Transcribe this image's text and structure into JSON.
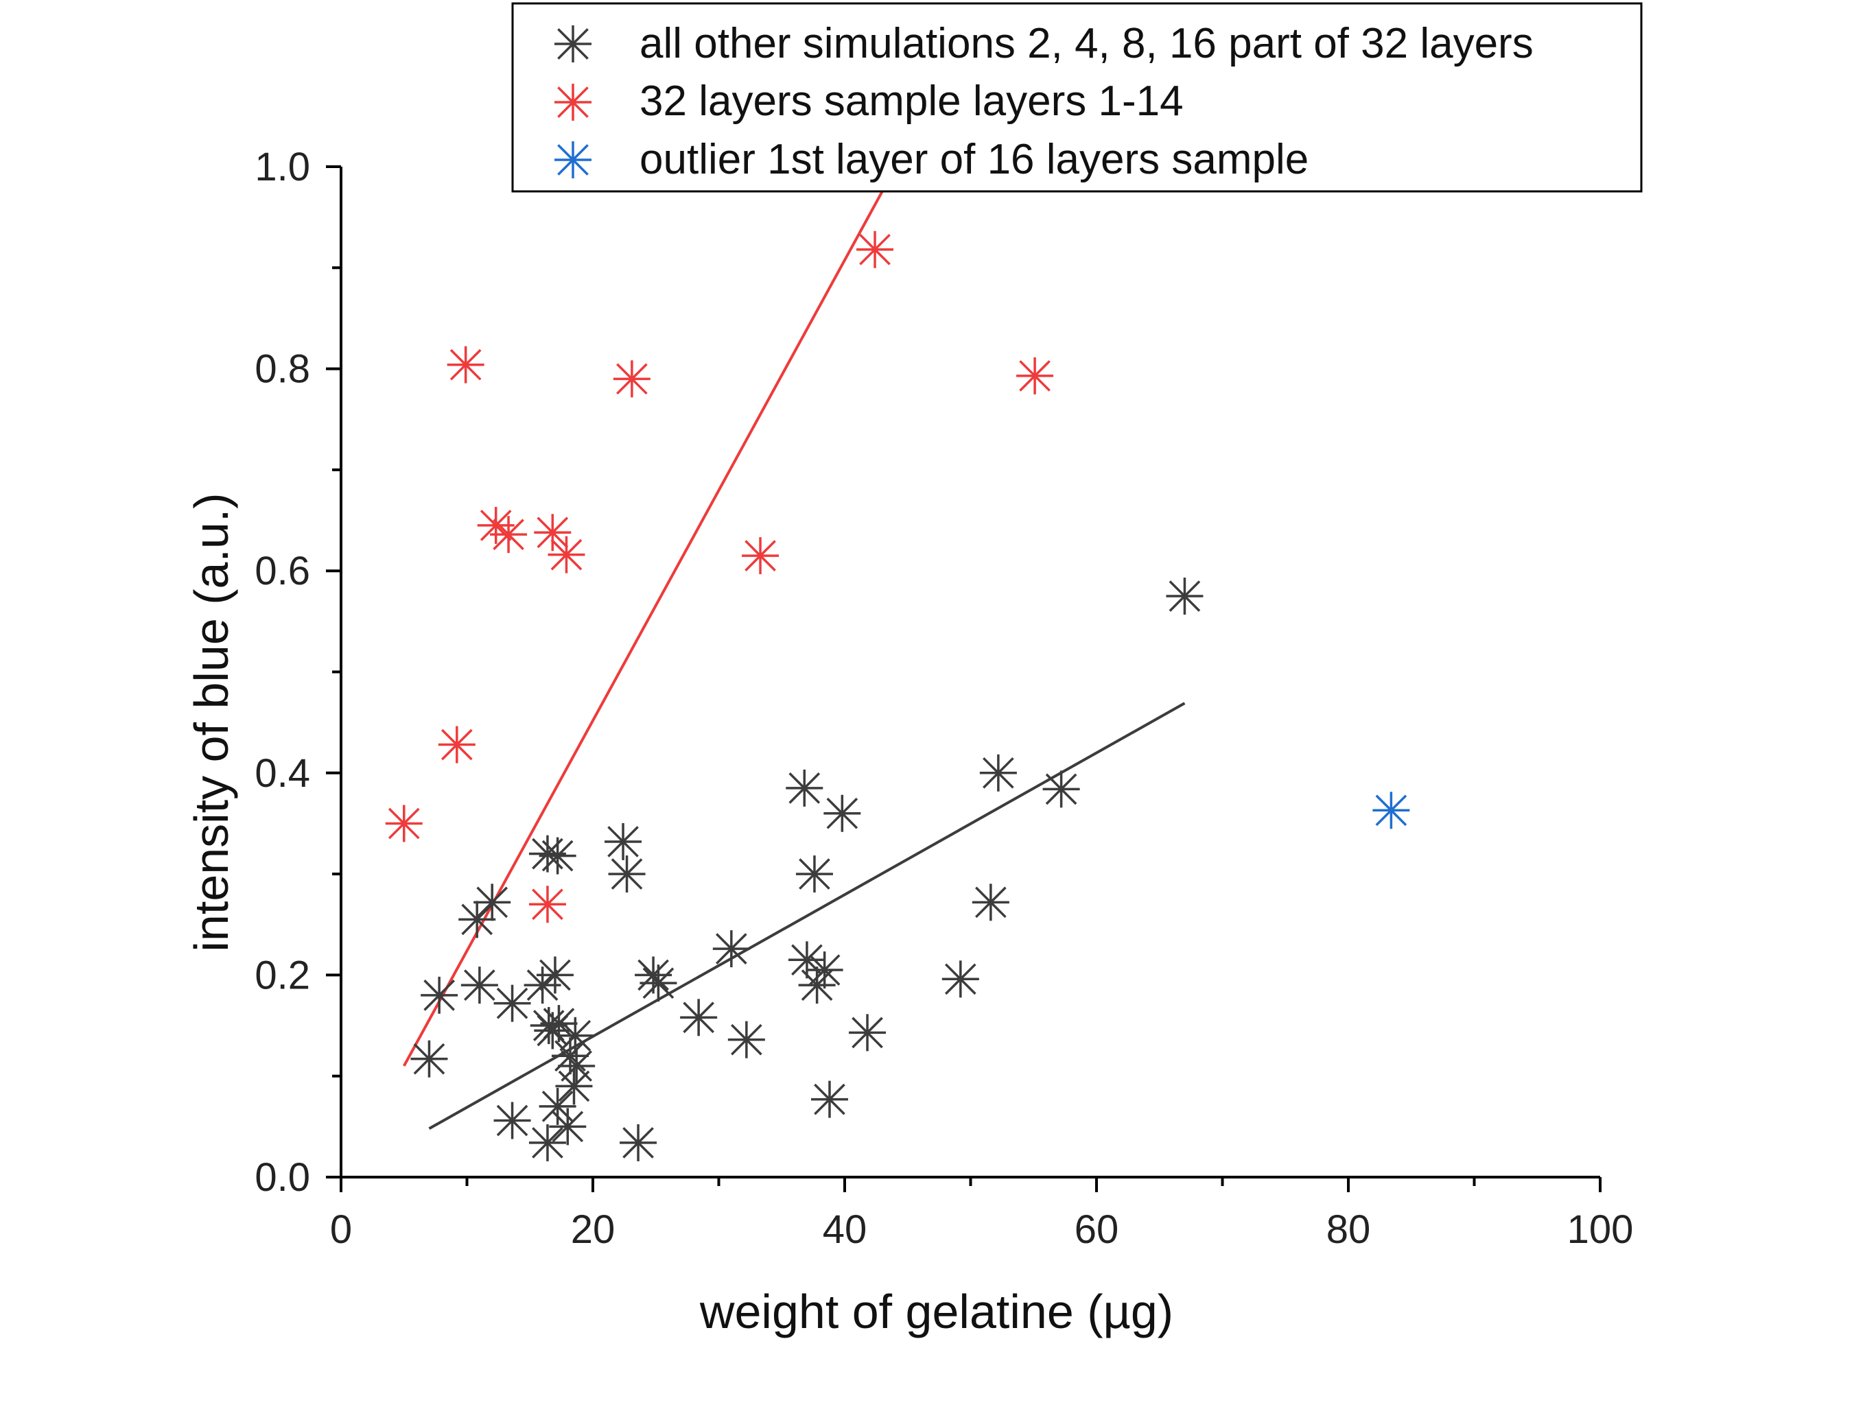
{
  "chart_data": {
    "type": "scatter",
    "xlabel": "weight of gelatine (µg)",
    "ylabel": "intensity of blue (a.u.)",
    "xlim": [
      0,
      100
    ],
    "ylim": [
      0,
      1.0
    ],
    "x_ticks": [
      "0",
      "20",
      "40",
      "60",
      "80",
      "100"
    ],
    "y_ticks": [
      "0.0",
      "0.2",
      "0.4",
      "0.6",
      "0.8",
      "1.0"
    ],
    "grid": false,
    "legend_position": "top",
    "series": [
      {
        "name": "all other simulations 2, 4, 8, 16 part of 32 layers",
        "color": "#3c3c3c",
        "marker": "asterisk",
        "points": [
          [
            7.0,
            0.117
          ],
          [
            7.8,
            0.18
          ],
          [
            10.8,
            0.255
          ],
          [
            11.0,
            0.19
          ],
          [
            12.0,
            0.272
          ],
          [
            13.6,
            0.172
          ],
          [
            13.6,
            0.056
          ],
          [
            16.0,
            0.19
          ],
          [
            16.4,
            0.32
          ],
          [
            16.4,
            0.034
          ],
          [
            16.5,
            0.15
          ],
          [
            16.8,
            0.145
          ],
          [
            17.0,
            0.2
          ],
          [
            17.2,
            0.318
          ],
          [
            17.2,
            0.07
          ],
          [
            17.3,
            0.152
          ],
          [
            18.0,
            0.05
          ],
          [
            18.2,
            0.12
          ],
          [
            18.5,
            0.09
          ],
          [
            18.6,
            0.14
          ],
          [
            18.7,
            0.11
          ],
          [
            22.4,
            0.332
          ],
          [
            22.7,
            0.3
          ],
          [
            23.6,
            0.034
          ],
          [
            24.8,
            0.2
          ],
          [
            25.2,
            0.192
          ],
          [
            28.4,
            0.158
          ],
          [
            31.0,
            0.226
          ],
          [
            32.2,
            0.136
          ],
          [
            36.8,
            0.385
          ],
          [
            37.0,
            0.215
          ],
          [
            37.6,
            0.3
          ],
          [
            37.8,
            0.19
          ],
          [
            38.4,
            0.205
          ],
          [
            38.8,
            0.077
          ],
          [
            39.8,
            0.36
          ],
          [
            41.8,
            0.143
          ],
          [
            49.2,
            0.196
          ],
          [
            51.6,
            0.272
          ],
          [
            52.2,
            0.4
          ],
          [
            57.2,
            0.384
          ],
          [
            67.0,
            0.575
          ]
        ]
      },
      {
        "name": "32 layers sample layers 1-14",
        "color": "#ee3b3b",
        "marker": "asterisk",
        "points": [
          [
            5.0,
            0.35
          ],
          [
            9.2,
            0.428
          ],
          [
            9.9,
            0.804
          ],
          [
            12.3,
            0.645
          ],
          [
            13.3,
            0.636
          ],
          [
            16.4,
            0.27
          ],
          [
            16.8,
            0.638
          ],
          [
            17.9,
            0.616
          ],
          [
            23.1,
            0.79
          ],
          [
            33.3,
            0.615
          ],
          [
            42.4,
            0.918
          ],
          [
            55.1,
            0.793
          ]
        ]
      },
      {
        "name": "outlier 1st layer of 16 layers sample",
        "color": "#1f6fd1",
        "marker": "asterisk",
        "points": [
          [
            83.4,
            0.363
          ]
        ]
      }
    ],
    "fit_lines": [
      {
        "series": "all other simulations 2, 4, 8, 16 part of 32 layers",
        "color": "#3c3c3c",
        "x": [
          7.0,
          67.0
        ],
        "y": [
          0.048,
          0.469
        ]
      },
      {
        "series": "32 layers sample layers 1-14",
        "color": "#ee3b3b",
        "x": [
          5.0,
          43.4
        ],
        "y": [
          0.11,
          0.985
        ]
      }
    ]
  }
}
